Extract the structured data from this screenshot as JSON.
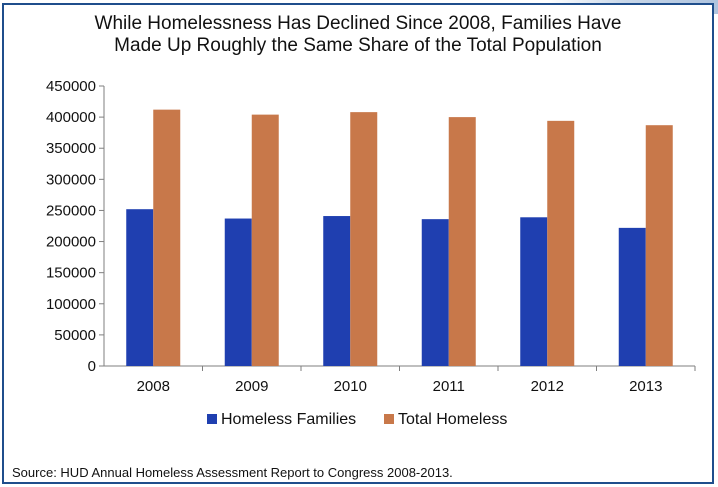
{
  "chart_data": {
    "type": "bar",
    "title_lines": [
      "While Homelessness Has Declined Since 2008, Families Have",
      "Made Up Roughly the Same Share of the Total Population"
    ],
    "categories": [
      "2008",
      "2009",
      "2010",
      "2011",
      "2012",
      "2013"
    ],
    "series": [
      {
        "name": "Homeless Families",
        "color": "#1f3fb0",
        "values": [
          252000,
          237000,
          241000,
          236000,
          239000,
          222000
        ]
      },
      {
        "name": "Total Homeless",
        "color": "#c8784a",
        "values": [
          412000,
          404000,
          408000,
          400000,
          394000,
          387000
        ]
      }
    ],
    "ylim": [
      0,
      450000
    ],
    "yticks": [
      "0",
      "50000",
      "100000",
      "150000",
      "200000",
      "250000",
      "300000",
      "350000",
      "400000",
      "450000"
    ],
    "xlabel": "",
    "ylabel": "",
    "grid": false,
    "legend": "bottom"
  },
  "source": "Source: HUD Annual Homeless Assessment Report to Congress 2008-2013."
}
